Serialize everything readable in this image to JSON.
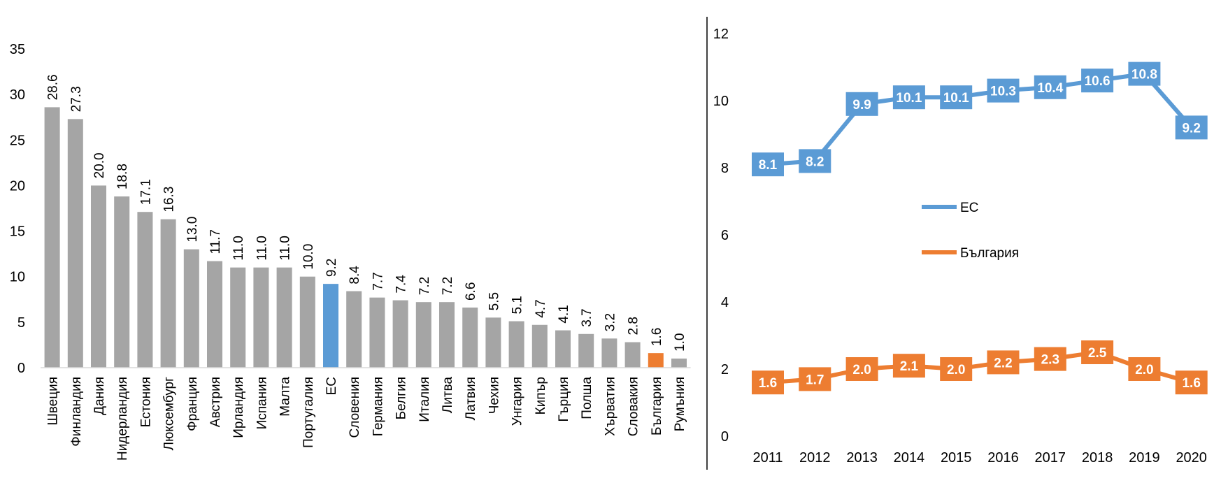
{
  "chart_data": [
    {
      "type": "bar",
      "categories": [
        "Швеция",
        "Финландия",
        "Дания",
        "Нидерландия",
        "Естония",
        "Люксембург",
        "Франция",
        "Австрия",
        "Ирландия",
        "Испания",
        "Малта",
        "Португалия",
        "ЕС",
        "Словения",
        "Германия",
        "Белгия",
        "Италия",
        "Литва",
        "Латвия",
        "Чехия",
        "Унгария",
        "Кипър",
        "Гърция",
        "Полша",
        "Хърватия",
        "Словакия",
        "България",
        "Румъния"
      ],
      "values": [
        28.6,
        27.3,
        20.0,
        18.8,
        17.1,
        16.3,
        13.0,
        11.7,
        11.0,
        11.0,
        11.0,
        10.0,
        9.2,
        8.4,
        7.7,
        7.4,
        7.2,
        7.2,
        6.6,
        5.5,
        5.1,
        4.7,
        4.1,
        3.7,
        3.2,
        2.8,
        1.6,
        1.0
      ],
      "data_labels": [
        "28.6",
        "27.3",
        "20.0",
        "18.8",
        "17.1",
        "16.3",
        "13.0",
        "11.7",
        "11.0",
        "11.0",
        "11.0",
        "10.0",
        "9.2",
        "8.4",
        "7.7",
        "7.4",
        "7.2",
        "7.2",
        "6.6",
        "5.5",
        "5.1",
        "4.7",
        "4.1",
        "3.7",
        "3.2",
        "2.8",
        "1.6",
        "1.0"
      ],
      "ylim": [
        0,
        35
      ],
      "yticks": [
        "0",
        "5",
        "10",
        "15",
        "20",
        "25",
        "30",
        "35"
      ],
      "grid": false,
      "colors": {
        "default": "#a5a5a5",
        "highlight_eu": "#5b9bd5",
        "highlight_bg": "#ed7d31"
      },
      "highlight": {
        "ЕС": "#5b9bd5",
        "България": "#ed7d31"
      }
    },
    {
      "type": "line",
      "x": [
        "2011",
        "2012",
        "2013",
        "2014",
        "2015",
        "2016",
        "2017",
        "2018",
        "2019",
        "2020"
      ],
      "series": [
        {
          "name": "ЕС",
          "color": "#5b9bd5",
          "values": [
            8.1,
            8.2,
            9.9,
            10.1,
            10.1,
            10.3,
            10.4,
            10.6,
            10.8,
            9.2
          ],
          "labels": [
            "8.1",
            "8.2",
            "9.9",
            "10.1",
            "10.1",
            "10.3",
            "10.4",
            "10.6",
            "10.8",
            "9.2"
          ]
        },
        {
          "name": "България",
          "color": "#ed7d31",
          "values": [
            1.6,
            1.7,
            2.0,
            2.1,
            2.0,
            2.2,
            2.3,
            2.5,
            2.0,
            1.6
          ],
          "labels": [
            "1.6",
            "1.7",
            "2.0",
            "2.1",
            "2.0",
            "2.2",
            "2.3",
            "2.5",
            "2.0",
            "1.6"
          ]
        }
      ],
      "ylim": [
        0,
        12
      ],
      "yticks": [
        "0",
        "2",
        "4",
        "6",
        "8",
        "10",
        "12"
      ],
      "grid": false,
      "legend": "center-left inside plot"
    }
  ]
}
